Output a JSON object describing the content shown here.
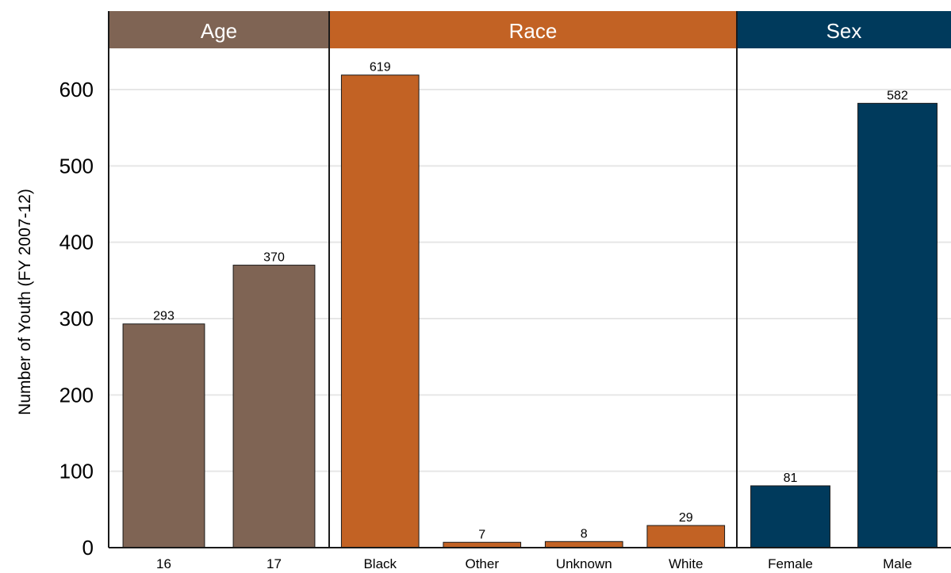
{
  "chart_data": {
    "type": "bar",
    "ylabel": "Number of Youth (FY 2007-12)",
    "ylim": [
      0,
      650
    ],
    "yticks": [
      0,
      100,
      200,
      300,
      400,
      500,
      600
    ],
    "grid": true,
    "facets": [
      {
        "title": "Age",
        "color": "#7f6454",
        "categories": [
          "16",
          "17"
        ],
        "values": [
          293,
          370
        ]
      },
      {
        "title": "Race",
        "color": "#c26224",
        "categories": [
          "Black",
          "Other",
          "Unknown",
          "White"
        ],
        "values": [
          619,
          7,
          8,
          29
        ]
      },
      {
        "title": "Sex",
        "color": "#003a5c",
        "categories": [
          "Female",
          "Male"
        ],
        "values": [
          81,
          582
        ]
      }
    ]
  }
}
